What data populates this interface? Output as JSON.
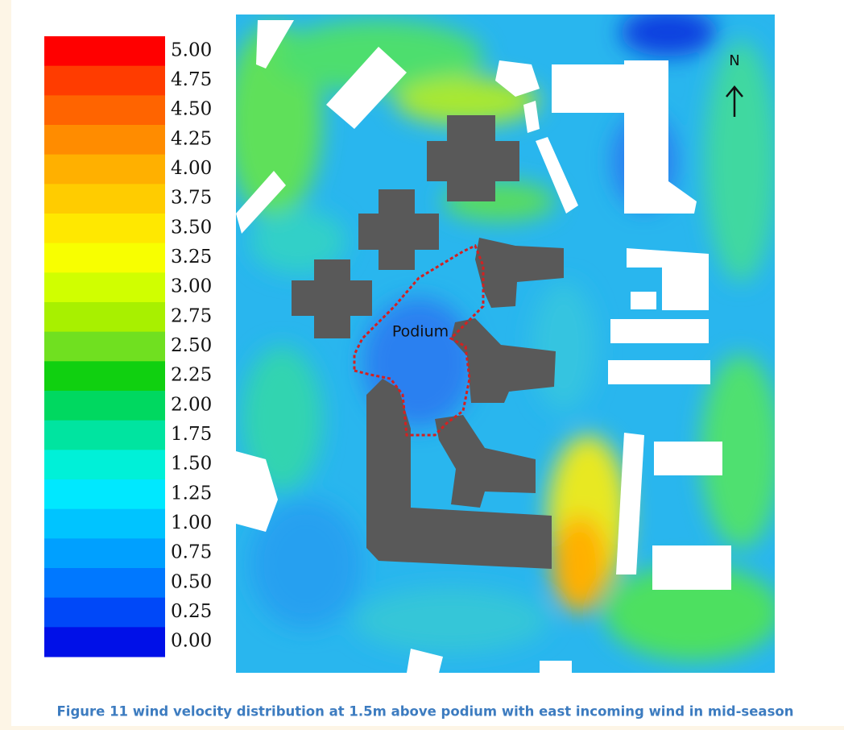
{
  "legend": {
    "ticks": [
      "5.00",
      "4.75",
      "4.50",
      "4.25",
      "4.00",
      "3.75",
      "3.50",
      "3.25",
      "3.00",
      "2.75",
      "2.50",
      "2.25",
      "2.00",
      "1.75",
      "1.50",
      "1.25",
      "1.00",
      "0.75",
      "0.50",
      "0.25",
      "0.00"
    ]
  },
  "map": {
    "north_label": "N",
    "podium_label": "Podium"
  },
  "caption": "Figure 11 wind velocity distribution at 1.5m above podium with east incoming wind in mid-season"
}
